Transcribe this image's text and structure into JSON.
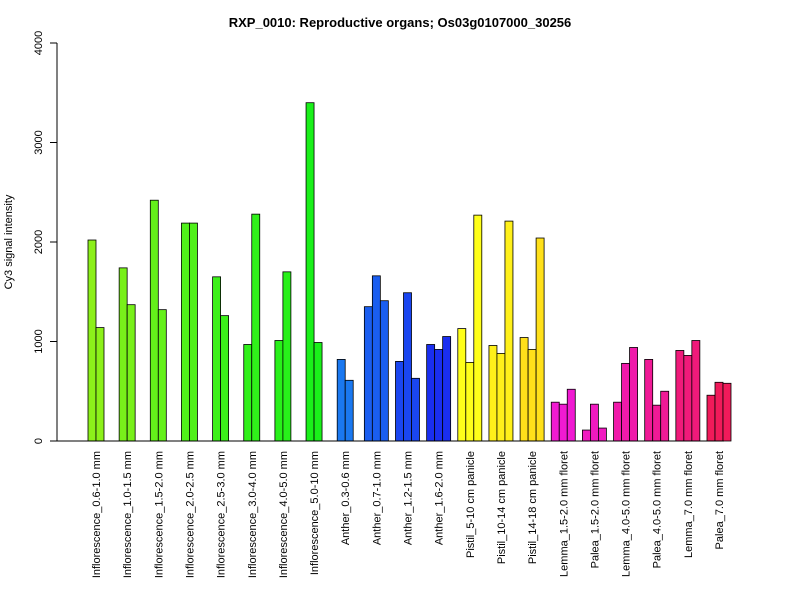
{
  "chart_data": {
    "type": "bar",
    "title": "RXP_0010: Reproductive organs; Os03g0107000_30256",
    "xlabel": "",
    "ylabel": "Cy3 signal intensity",
    "ylim": [
      0,
      4000
    ],
    "yticks": [
      "0",
      "1000",
      "2000",
      "3000",
      "4000"
    ],
    "grid": false,
    "legend": "none",
    "groups": [
      {
        "label": "Inflorescence_0.6-1.0 mm",
        "color": "#8cf01a",
        "values": [
          2020,
          1140
        ]
      },
      {
        "label": "Inflorescence_1.0-1.5 mm",
        "color": "#78f01a",
        "values": [
          1740,
          1370
        ]
      },
      {
        "label": "Inflorescence_1.5-2.0 mm",
        "color": "#64f01a",
        "values": [
          2420,
          1320
        ]
      },
      {
        "label": "Inflorescence_2.0-2.5 mm",
        "color": "#50f01a",
        "values": [
          2190,
          2190
        ]
      },
      {
        "label": "Inflorescence_2.5-3.0 mm",
        "color": "#3cf01a",
        "values": [
          1650,
          1260
        ]
      },
      {
        "label": "Inflorescence_3.0-4.0 mm",
        "color": "#30f01a",
        "values": [
          970,
          2280
        ]
      },
      {
        "label": "Inflorescence_4.0-5.0 mm",
        "color": "#28f01a",
        "values": [
          1010,
          1700
        ]
      },
      {
        "label": "Inflorescence_5.0-10 mm",
        "color": "#1af01a",
        "values": [
          3400,
          990
        ]
      },
      {
        "label": "Anther_0.3-0.6 mm",
        "color": "#1a78f0",
        "values": [
          820,
          610
        ]
      },
      {
        "label": "Anther_0.7-1.0 mm",
        "color": "#1a5ef0",
        "values": [
          1350,
          1660,
          1410
        ]
      },
      {
        "label": "Anther_1.2-1.5 mm",
        "color": "#1a46f0",
        "values": [
          800,
          1490,
          630
        ]
      },
      {
        "label": "Anther_1.6-2.0 mm",
        "color": "#1a2ef0",
        "values": [
          970,
          920,
          1050
        ]
      },
      {
        "label": "Pistil_5-10 cm panicle",
        "color": "#ffff1a",
        "values": [
          1130,
          790,
          2270
        ]
      },
      {
        "label": "Pistil_10-14 cm panicle",
        "color": "#fff01a",
        "values": [
          960,
          880,
          2210
        ]
      },
      {
        "label": "Pistil_14-18 cm panicle",
        "color": "#ffe01a",
        "values": [
          1040,
          920,
          2040
        ]
      },
      {
        "label": "Lemma_1.5-2.0 mm floret",
        "color": "#f01ad2",
        "values": [
          390,
          370,
          520
        ]
      },
      {
        "label": "Palea_1.5-2.0 mm floret",
        "color": "#f01ac0",
        "values": [
          110,
          370,
          130
        ]
      },
      {
        "label": "Lemma_4.0-5.0 mm floret",
        "color": "#f01aaa",
        "values": [
          390,
          780,
          940
        ]
      },
      {
        "label": "Palea_4.0-5.0 mm floret",
        "color": "#f01a96",
        "values": [
          820,
          360,
          500
        ]
      },
      {
        "label": "Lemma_7.0 mm floret",
        "color": "#f01a7a",
        "values": [
          910,
          860,
          1010
        ]
      },
      {
        "label": "Palea_7.0 mm floret",
        "color": "#f01a5a",
        "values": [
          460,
          590,
          580
        ]
      }
    ]
  }
}
